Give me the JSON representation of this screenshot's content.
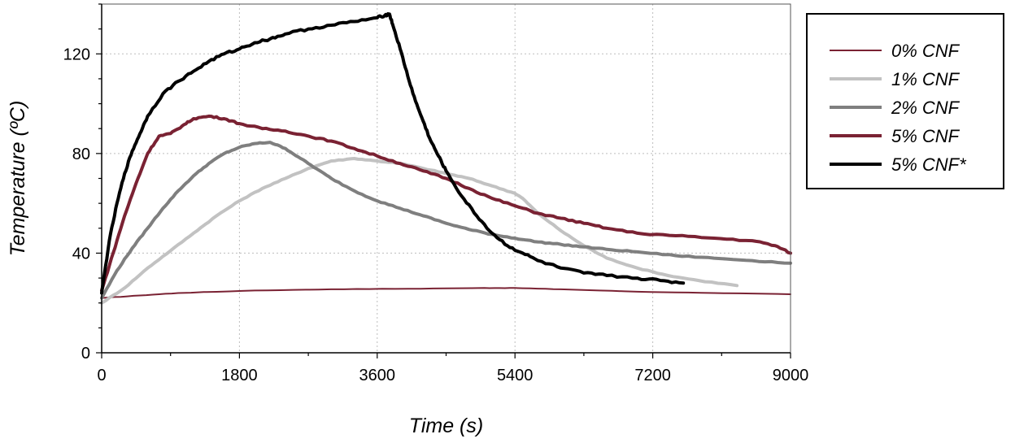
{
  "chart_data": {
    "type": "line",
    "xlabel": "Time (s)",
    "ylabel": "Temperature (ºC)",
    "xlim": [
      0,
      9000
    ],
    "ylim": [
      0,
      140
    ],
    "xticks": [
      0,
      1800,
      3600,
      5400,
      7200,
      9000
    ],
    "yticks": [
      0,
      40,
      80,
      120
    ],
    "xtick_labels": [
      "0",
      "1800",
      "3600",
      "5400",
      "7200",
      "9000"
    ],
    "ytick_labels": [
      "0",
      "40",
      "80",
      "120"
    ],
    "grid": true,
    "legend_position": "right",
    "series": [
      {
        "name": "0% CNF",
        "color": "#7a2233",
        "width": 2,
        "points": [
          [
            0,
            22
          ],
          [
            500,
            23
          ],
          [
            1000,
            24
          ],
          [
            2000,
            25
          ],
          [
            3000,
            25.5
          ],
          [
            4000,
            25.7
          ],
          [
            5000,
            26
          ],
          [
            5400,
            26
          ],
          [
            6000,
            25.5
          ],
          [
            7000,
            24.5
          ],
          [
            8000,
            24
          ],
          [
            9000,
            23.5
          ]
        ]
      },
      {
        "name": "1% CNF",
        "color": "#c2c2c2",
        "width": 4,
        "points": [
          [
            0,
            20
          ],
          [
            300,
            26
          ],
          [
            600,
            34
          ],
          [
            900,
            41
          ],
          [
            1200,
            48
          ],
          [
            1500,
            55
          ],
          [
            1800,
            61
          ],
          [
            2100,
            66
          ],
          [
            2400,
            70
          ],
          [
            2700,
            74
          ],
          [
            3000,
            77
          ],
          [
            3300,
            78
          ],
          [
            3600,
            77
          ],
          [
            3900,
            76
          ],
          [
            4200,
            74
          ],
          [
            4500,
            72
          ],
          [
            4800,
            70
          ],
          [
            5100,
            67
          ],
          [
            5400,
            64
          ],
          [
            5500,
            62
          ],
          [
            5700,
            56
          ],
          [
            6000,
            49
          ],
          [
            6300,
            43
          ],
          [
            6600,
            38
          ],
          [
            7000,
            34
          ],
          [
            7400,
            31
          ],
          [
            7800,
            29
          ],
          [
            8300,
            27
          ]
        ]
      },
      {
        "name": "2% CNF",
        "color": "#7f7f7f",
        "width": 4,
        "points": [
          [
            0,
            22
          ],
          [
            200,
            33
          ],
          [
            400,
            42
          ],
          [
            600,
            50
          ],
          [
            800,
            58
          ],
          [
            1000,
            65
          ],
          [
            1200,
            71
          ],
          [
            1400,
            76
          ],
          [
            1600,
            80
          ],
          [
            1800,
            82.5
          ],
          [
            2000,
            84
          ],
          [
            2200,
            84.5
          ],
          [
            2400,
            82
          ],
          [
            2600,
            78
          ],
          [
            2800,
            74
          ],
          [
            3000,
            70
          ],
          [
            3300,
            65
          ],
          [
            3600,
            61
          ],
          [
            3900,
            58
          ],
          [
            4200,
            55
          ],
          [
            4500,
            52
          ],
          [
            4800,
            49.5
          ],
          [
            5100,
            47.5
          ],
          [
            5400,
            46
          ],
          [
            5700,
            44.5
          ],
          [
            6000,
            43.5
          ],
          [
            6300,
            42.5
          ],
          [
            6600,
            41.5
          ],
          [
            7000,
            40.5
          ],
          [
            7500,
            39
          ],
          [
            8000,
            38
          ],
          [
            8500,
            37
          ],
          [
            9000,
            36
          ]
        ]
      },
      {
        "name": "5% CNF",
        "color": "#7a2233",
        "width": 4,
        "points": [
          [
            0,
            25
          ],
          [
            150,
            40
          ],
          [
            300,
            55
          ],
          [
            450,
            68
          ],
          [
            600,
            80
          ],
          [
            750,
            87
          ],
          [
            900,
            88
          ],
          [
            1050,
            91
          ],
          [
            1200,
            94
          ],
          [
            1400,
            95
          ],
          [
            1600,
            94
          ],
          [
            1800,
            92
          ],
          [
            2100,
            90
          ],
          [
            2400,
            89
          ],
          [
            2700,
            87
          ],
          [
            3000,
            85
          ],
          [
            3300,
            82
          ],
          [
            3600,
            79
          ],
          [
            3900,
            76
          ],
          [
            4200,
            73
          ],
          [
            4500,
            70
          ],
          [
            4800,
            66
          ],
          [
            5100,
            62
          ],
          [
            5400,
            59
          ],
          [
            5700,
            56
          ],
          [
            6000,
            54
          ],
          [
            6300,
            52
          ],
          [
            6600,
            50
          ],
          [
            7000,
            48
          ],
          [
            7500,
            47
          ],
          [
            8000,
            46
          ],
          [
            8500,
            45
          ],
          [
            8800,
            43
          ],
          [
            9000,
            40
          ]
        ]
      },
      {
        "name": "5% CNF*",
        "color": "#000000",
        "width": 4,
        "points": [
          [
            0,
            24
          ],
          [
            100,
            45
          ],
          [
            200,
            60
          ],
          [
            300,
            72
          ],
          [
            400,
            81
          ],
          [
            500,
            88
          ],
          [
            600,
            95
          ],
          [
            800,
            104
          ],
          [
            1000,
            109
          ],
          [
            1200,
            113
          ],
          [
            1400,
            117
          ],
          [
            1600,
            120
          ],
          [
            1800,
            122
          ],
          [
            2000,
            124.5
          ],
          [
            2200,
            126
          ],
          [
            2400,
            128
          ],
          [
            2700,
            130
          ],
          [
            3000,
            131.5
          ],
          [
            3300,
            133
          ],
          [
            3600,
            134.5
          ],
          [
            3700,
            135.5
          ],
          [
            3760,
            136
          ],
          [
            3800,
            132
          ],
          [
            3900,
            122
          ],
          [
            4000,
            111
          ],
          [
            4100,
            101
          ],
          [
            4200,
            93
          ],
          [
            4300,
            85
          ],
          [
            4400,
            79
          ],
          [
            4500,
            73
          ],
          [
            4700,
            63
          ],
          [
            4900,
            55
          ],
          [
            5100,
            48
          ],
          [
            5300,
            43
          ],
          [
            5500,
            40
          ],
          [
            5700,
            37
          ],
          [
            6000,
            34
          ],
          [
            6300,
            32
          ],
          [
            6600,
            31
          ],
          [
            7000,
            30
          ],
          [
            7300,
            29
          ],
          [
            7600,
            28
          ]
        ]
      }
    ]
  }
}
